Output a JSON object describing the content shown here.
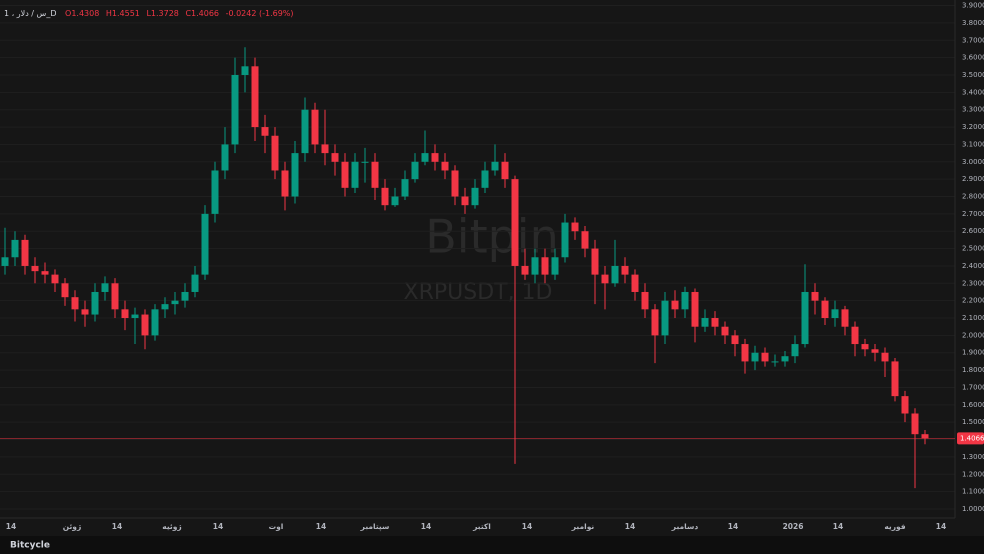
{
  "header": {
    "symbol": "1 ، س / دلار_D",
    "open": "O1.4308",
    "high": "H1.4551",
    "low": "L1.3728",
    "close": "C1.4066",
    "change": "-0.0242 (-1.69%)"
  },
  "watermark": {
    "brand": "Bitpin",
    "ticker": "XRPUSDT, 1D"
  },
  "footer": "Bitcycle",
  "chart_data": {
    "type": "candlestick",
    "open": [
      2.4,
      2.45,
      2.55,
      2.4,
      2.37,
      2.35,
      2.3,
      2.22,
      2.15,
      2.12,
      2.25,
      2.3,
      2.15,
      2.1,
      2.12,
      2.0,
      2.15,
      2.18,
      2.2,
      2.25,
      2.35,
      2.7,
      2.95,
      3.1,
      3.5,
      3.55,
      3.2,
      3.15,
      2.95,
      2.8,
      3.05,
      3.3,
      3.1,
      3.05,
      3.0,
      2.85,
      3.0,
      3.0,
      2.85,
      2.75,
      2.8,
      2.9,
      3.0,
      3.05,
      3.0,
      2.95,
      2.8,
      2.75,
      2.85,
      2.95,
      3.0,
      2.9,
      2.4,
      2.35,
      2.45,
      2.35,
      2.45,
      2.65,
      2.6,
      2.5,
      2.35,
      2.3,
      2.4,
      2.35,
      2.25,
      2.15,
      2.0,
      2.2,
      2.15,
      2.25,
      2.05,
      2.1,
      2.05,
      2.0,
      1.95,
      1.85,
      1.9,
      1.85,
      1.85,
      1.88,
      1.95,
      2.25,
      2.2,
      2.1,
      2.15,
      2.05,
      1.95,
      1.92,
      1.9,
      1.85,
      1.65,
      1.55,
      1.4308
    ],
    "high": [
      2.62,
      2.6,
      2.58,
      2.45,
      2.42,
      2.38,
      2.33,
      2.26,
      2.2,
      2.3,
      2.34,
      2.33,
      2.2,
      2.16,
      2.15,
      2.18,
      2.22,
      2.25,
      2.3,
      2.4,
      2.75,
      3.0,
      3.2,
      3.6,
      3.66,
      3.6,
      3.27,
      3.2,
      3.0,
      3.12,
      3.37,
      3.34,
      3.3,
      3.1,
      3.05,
      3.05,
      3.08,
      3.05,
      2.9,
      2.85,
      2.95,
      3.05,
      3.18,
      3.1,
      3.05,
      2.98,
      2.85,
      2.9,
      3.0,
      3.1,
      3.05,
      2.92,
      2.5,
      2.5,
      2.5,
      2.5,
      2.7,
      2.68,
      2.63,
      2.55,
      2.4,
      2.55,
      2.45,
      2.38,
      2.3,
      2.18,
      2.25,
      2.26,
      2.28,
      2.27,
      2.15,
      2.14,
      2.08,
      2.03,
      1.98,
      1.94,
      1.93,
      1.89,
      1.91,
      2.0,
      2.41,
      2.3,
      2.22,
      2.2,
      2.17,
      2.08,
      1.98,
      1.95,
      1.93,
      1.87,
      1.68,
      1.58,
      1.4551
    ],
    "low": [
      2.35,
      2.4,
      2.35,
      2.3,
      2.3,
      2.25,
      2.17,
      2.08,
      2.05,
      2.08,
      2.2,
      2.1,
      2.03,
      1.95,
      1.92,
      1.97,
      2.1,
      2.12,
      2.16,
      2.22,
      2.32,
      2.65,
      2.9,
      3.05,
      3.4,
      3.12,
      3.05,
      2.9,
      2.72,
      2.76,
      3.0,
      3.05,
      2.98,
      2.92,
      2.8,
      2.82,
      2.88,
      2.78,
      2.72,
      2.74,
      2.78,
      2.88,
      2.98,
      2.95,
      2.9,
      2.75,
      2.7,
      2.73,
      2.82,
      2.92,
      2.85,
      1.26,
      2.32,
      2.3,
      2.3,
      2.32,
      2.42,
      2.55,
      2.45,
      2.18,
      2.15,
      2.28,
      2.3,
      2.2,
      2.1,
      1.84,
      1.95,
      2.1,
      2.1,
      1.96,
      2.02,
      2.0,
      1.95,
      1.88,
      1.78,
      1.8,
      1.82,
      1.82,
      1.82,
      1.84,
      1.93,
      2.12,
      2.06,
      2.05,
      2.0,
      1.88,
      1.88,
      1.85,
      1.76,
      1.62,
      1.5,
      1.12,
      1.3728
    ],
    "close": [
      2.45,
      2.55,
      2.4,
      2.37,
      2.35,
      2.3,
      2.22,
      2.15,
      2.12,
      2.25,
      2.3,
      2.15,
      2.1,
      2.12,
      2.0,
      2.15,
      2.18,
      2.2,
      2.25,
      2.35,
      2.7,
      2.95,
      3.1,
      3.5,
      3.55,
      3.2,
      3.15,
      2.95,
      2.8,
      3.05,
      3.3,
      3.1,
      3.05,
      3.0,
      2.85,
      3.0,
      3.0,
      2.85,
      2.75,
      2.8,
      2.9,
      3.0,
      3.05,
      3.0,
      2.95,
      2.8,
      2.75,
      2.85,
      2.95,
      3.0,
      2.9,
      2.4,
      2.35,
      2.45,
      2.35,
      2.45,
      2.65,
      2.6,
      2.5,
      2.35,
      2.3,
      2.4,
      2.35,
      2.25,
      2.15,
      2.0,
      2.2,
      2.15,
      2.25,
      2.05,
      2.1,
      2.05,
      2.0,
      1.95,
      1.85,
      1.9,
      1.85,
      1.85,
      1.88,
      1.95,
      2.25,
      2.2,
      2.1,
      2.15,
      2.05,
      1.95,
      1.92,
      1.9,
      1.85,
      1.65,
      1.55,
      1.4308,
      1.4066
    ],
    "up_color": "#089981",
    "down_color": "#f23645",
    "ylim": [
      0.948,
      3.932
    ],
    "yticks": [
      {
        "value": 1.0,
        "label": "1.0000"
      },
      {
        "value": 1.1,
        "label": "1.1000"
      },
      {
        "value": 1.2,
        "label": "1.2000"
      },
      {
        "value": 1.3,
        "label": "1.3000"
      },
      {
        "value": 1.4,
        "label": "1.4000"
      },
      {
        "value": 1.5,
        "label": "1.5000"
      },
      {
        "value": 1.6,
        "label": "1.6000"
      },
      {
        "value": 1.7,
        "label": "1.7000"
      },
      {
        "value": 1.8,
        "label": "1.8000"
      },
      {
        "value": 1.9,
        "label": "1.9000"
      },
      {
        "value": 2.0,
        "label": "2.0000"
      },
      {
        "value": 2.1,
        "label": "2.1000"
      },
      {
        "value": 2.2,
        "label": "2.2000"
      },
      {
        "value": 2.3,
        "label": "2.3000"
      },
      {
        "value": 2.4,
        "label": "2.4000"
      },
      {
        "value": 2.5,
        "label": "2.5000"
      },
      {
        "value": 2.6,
        "label": "2.6000"
      },
      {
        "value": 2.7,
        "label": "2.7000"
      },
      {
        "value": 2.8,
        "label": "2.8000"
      },
      {
        "value": 2.9,
        "label": "2.9000"
      },
      {
        "value": 3.0,
        "label": "3.0000"
      },
      {
        "value": 3.1,
        "label": "3.1000"
      },
      {
        "value": 3.2,
        "label": "3.2000"
      },
      {
        "value": 3.3,
        "label": "3.3000"
      },
      {
        "value": 3.4,
        "label": "3.4000"
      },
      {
        "value": 3.5,
        "label": "3.5000"
      },
      {
        "value": 3.6,
        "label": "3.6000"
      },
      {
        "value": 3.7,
        "label": "3.7000"
      },
      {
        "value": 3.8,
        "label": "3.8000"
      },
      {
        "value": 3.9,
        "label": "3.9000"
      }
    ],
    "xticks": [
      "14",
      "ژوئن",
      "14",
      "ژوئیه",
      "14",
      "اوت",
      "14",
      "سپتامبر",
      "14",
      "اکتبر",
      "14",
      "نوامبر",
      "14",
      "دسامبر",
      "14",
      "2026",
      "14",
      "فوریه",
      "14"
    ],
    "grid": true
  }
}
